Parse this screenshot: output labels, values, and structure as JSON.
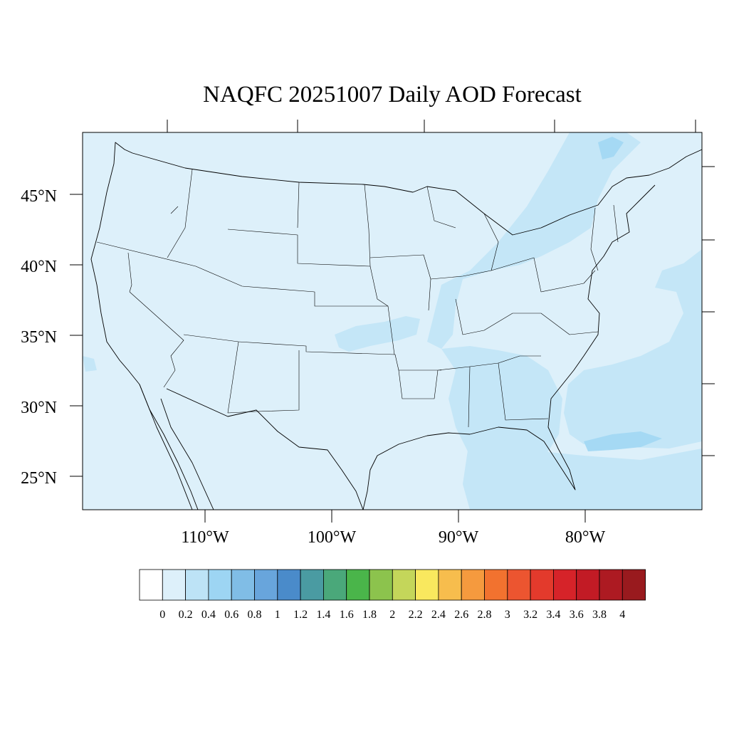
{
  "title": "NAQFC 20251007 Daily AOD Forecast",
  "map": {
    "lat_labels": [
      "45°N",
      "40°N",
      "35°N",
      "30°N",
      "25°N"
    ],
    "lon_labels": [
      "110°W",
      "100°W",
      "90°W",
      "80°W"
    ],
    "background_color": "#ddf0fa",
    "elevated_color": "#c4e6f7",
    "high_color": "#a5d9f4",
    "line_color": "#000000"
  },
  "colorbar": {
    "colors": [
      "#ffffff",
      "#ddf0fa",
      "#bde3f6",
      "#9dd5f3",
      "#80bde6",
      "#68a5dc",
      "#4a8bca",
      "#4a9ba2",
      "#4aa87a",
      "#4ab54a",
      "#8cc34d",
      "#c4d65a",
      "#f9e85e",
      "#f7bd4d",
      "#f59a3e",
      "#f2722f",
      "#ec5530",
      "#e33a2c",
      "#d62329",
      "#c21b25",
      "#ad1a22",
      "#991a1e"
    ],
    "labels": [
      "0",
      "0.2",
      "0.4",
      "0.6",
      "0.8",
      "1",
      "1.2",
      "1.4",
      "1.6",
      "1.8",
      "2",
      "2.2",
      "2.4",
      "2.6",
      "2.8",
      "3",
      "3.2",
      "3.4",
      "3.6",
      "3.8",
      "4"
    ]
  }
}
